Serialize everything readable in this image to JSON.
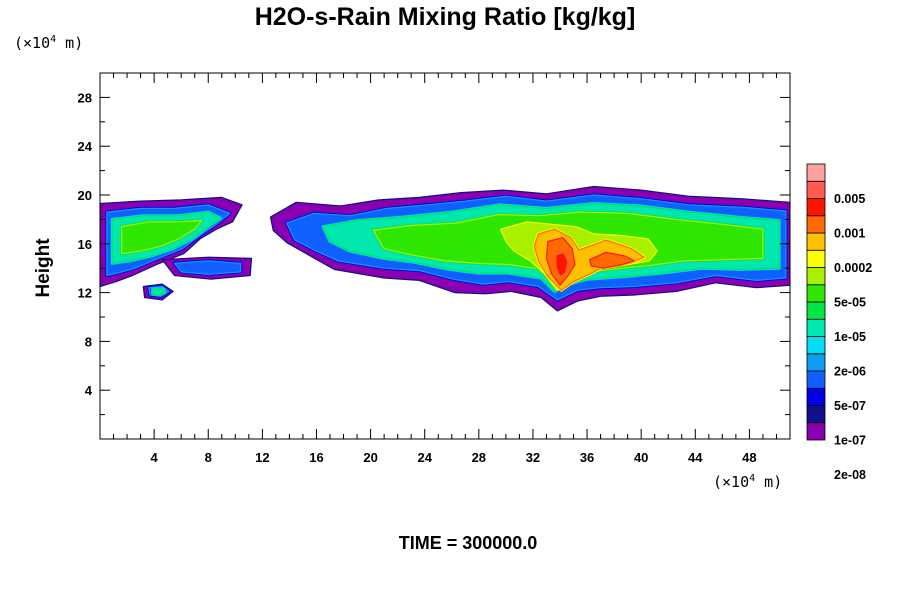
{
  "chart_data": {
    "type": "heatmap",
    "title": "H2O-s-Rain Mixing Ratio [kg/kg]",
    "xlabel": "",
    "ylabel": "Height",
    "x_unit": {
      "prefix": "(×10",
      "exp": "4",
      "suffix": " m)"
    },
    "y_unit": {
      "prefix": "(×10",
      "exp": "4",
      "suffix": " m)"
    },
    "xlim": [
      0,
      51
    ],
    "ylim": [
      0,
      30
    ],
    "x_ticks": [
      4,
      8,
      12,
      16,
      20,
      24,
      28,
      32,
      36,
      40,
      44,
      48
    ],
    "y_ticks": [
      4,
      8,
      12,
      16,
      20,
      24,
      28
    ],
    "colorbar": {
      "labels": [
        "0.005",
        "0.001",
        "0.0002",
        "5e-05",
        "1e-05",
        "2e-06",
        "5e-07",
        "1e-07",
        "2e-08"
      ],
      "colors": [
        "#8a00b0",
        "#10108a",
        "#0000e6",
        "#1060ff",
        "#0c9cf2",
        "#00dcf0",
        "#00e8b0",
        "#00e64a",
        "#2ee600",
        "#a8f000",
        "#ffff00",
        "#ffc000",
        "#ff6a00",
        "#ff1400",
        "#ff5a50",
        "#ffa0a0"
      ]
    },
    "regions": [
      {
        "level": 0,
        "pts": [
          [
            0,
            19.3
          ],
          [
            3,
            19.5
          ],
          [
            6,
            19.6
          ],
          [
            9,
            19.8
          ],
          [
            10.5,
            19.2
          ],
          [
            9.8,
            17.8
          ],
          [
            8.6,
            17.2
          ],
          [
            7.4,
            16.4
          ],
          [
            6.2,
            15.2
          ],
          [
            4.2,
            14.3
          ],
          [
            2.4,
            13.4
          ],
          [
            1.2,
            12.9
          ],
          [
            0,
            12.5
          ]
        ]
      },
      {
        "level": 0,
        "pts": [
          [
            12.6,
            18.2
          ],
          [
            14.5,
            19.4
          ],
          [
            17.8,
            19.1
          ],
          [
            20.6,
            19.6
          ],
          [
            23.6,
            19.8
          ],
          [
            26.7,
            20.2
          ],
          [
            29.8,
            20.4
          ],
          [
            33,
            20.1
          ],
          [
            36.5,
            20.7
          ],
          [
            40,
            20.4
          ],
          [
            43.5,
            19.9
          ],
          [
            47.4,
            19.7
          ],
          [
            51,
            19.4
          ],
          [
            51,
            12.6
          ],
          [
            48.5,
            12.4
          ],
          [
            45.5,
            12.8
          ],
          [
            42.6,
            12.1
          ],
          [
            39.5,
            11.8
          ],
          [
            37,
            11.7
          ],
          [
            35.3,
            11.3
          ],
          [
            33.8,
            10.5
          ],
          [
            32.6,
            11.6
          ],
          [
            30.4,
            12.1
          ],
          [
            28.5,
            11.9
          ],
          [
            26.2,
            12
          ],
          [
            23.6,
            13
          ],
          [
            21,
            13.2
          ],
          [
            17.3,
            13.9
          ],
          [
            15.4,
            15.1
          ],
          [
            13.8,
            16.1
          ],
          [
            12.8,
            17.1
          ]
        ]
      },
      {
        "level": 0,
        "pts": [
          [
            3.2,
            12.5
          ],
          [
            4.6,
            12.7
          ],
          [
            5.4,
            12.1
          ],
          [
            4.6,
            11.4
          ],
          [
            3.3,
            11.6
          ]
        ]
      },
      {
        "level": 0,
        "pts": [
          [
            4.6,
            14.7
          ],
          [
            8,
            14.9
          ],
          [
            11.2,
            14.8
          ],
          [
            11.1,
            13.4
          ],
          [
            8.2,
            13.1
          ],
          [
            5.5,
            13.4
          ]
        ]
      },
      {
        "level": 3,
        "pts": [
          [
            0.5,
            18.6
          ],
          [
            3,
            18.9
          ],
          [
            5.5,
            18.9
          ],
          [
            8,
            19.2
          ],
          [
            9.6,
            18.5
          ],
          [
            8.6,
            17.6
          ],
          [
            7.4,
            16.7
          ],
          [
            6.1,
            15.6
          ],
          [
            4.3,
            14.8
          ],
          [
            2.6,
            14
          ],
          [
            1.3,
            13.6
          ],
          [
            0.5,
            13.4
          ]
        ]
      },
      {
        "level": 3,
        "pts": [
          [
            13.8,
            17.7
          ],
          [
            15.8,
            18.5
          ],
          [
            18.5,
            18.3
          ],
          [
            21.2,
            18.9
          ],
          [
            24.2,
            19.2
          ],
          [
            27,
            19.5
          ],
          [
            30,
            19.9
          ],
          [
            33,
            19.5
          ],
          [
            36.5,
            20
          ],
          [
            40,
            19.7
          ],
          [
            43.5,
            19.2
          ],
          [
            47.4,
            19
          ],
          [
            50.7,
            18.7
          ],
          [
            50.7,
            13.2
          ],
          [
            48.5,
            13
          ],
          [
            45.5,
            13.4
          ],
          [
            42.6,
            12.8
          ],
          [
            39.5,
            12.5
          ],
          [
            37,
            12.4
          ],
          [
            35.3,
            12.2
          ],
          [
            33.8,
            11.4
          ],
          [
            32.4,
            12.5
          ],
          [
            30.2,
            12.9
          ],
          [
            28.3,
            12.7
          ],
          [
            26.1,
            13.1
          ],
          [
            23.6,
            13.8
          ],
          [
            21,
            14
          ],
          [
            17.6,
            14.6
          ],
          [
            15.8,
            15.5
          ],
          [
            14.4,
            16.3
          ]
        ]
      },
      {
        "level": 3,
        "pts": [
          [
            3.6,
            12.4
          ],
          [
            4.6,
            12.5
          ],
          [
            5.1,
            12.1
          ],
          [
            4.5,
            11.7
          ],
          [
            3.7,
            11.8
          ]
        ]
      },
      {
        "level": 3,
        "pts": [
          [
            5.5,
            14.4
          ],
          [
            8,
            14.6
          ],
          [
            10.4,
            14.4
          ],
          [
            10.4,
            13.7
          ],
          [
            8,
            13.5
          ],
          [
            6,
            13.7
          ]
        ]
      },
      {
        "level": 6,
        "pts": [
          [
            0.9,
            18
          ],
          [
            3.2,
            18.3
          ],
          [
            5.8,
            18.3
          ],
          [
            8,
            18.6
          ],
          [
            8.9,
            18.1
          ],
          [
            8,
            17.4
          ],
          [
            6.8,
            16.4
          ],
          [
            5.4,
            15.6
          ],
          [
            3.8,
            15
          ],
          [
            2.2,
            14.6
          ],
          [
            0.9,
            14.4
          ]
        ]
      },
      {
        "level": 6,
        "pts": [
          [
            16.5,
            17.4
          ],
          [
            19,
            17.9
          ],
          [
            22.5,
            18.2
          ],
          [
            26,
            18.6
          ],
          [
            29.5,
            19.2
          ],
          [
            33,
            18.9
          ],
          [
            36.5,
            19.3
          ],
          [
            40,
            19.1
          ],
          [
            43.5,
            18.6
          ],
          [
            47,
            18.2
          ],
          [
            50.2,
            17.9
          ],
          [
            50.2,
            14
          ],
          [
            47.5,
            13.9
          ],
          [
            44.5,
            14
          ],
          [
            41.5,
            13.6
          ],
          [
            38.6,
            13.3
          ],
          [
            36,
            13.1
          ],
          [
            34.4,
            12.6
          ],
          [
            33.6,
            12.1
          ],
          [
            32.6,
            13.2
          ],
          [
            30.2,
            13.6
          ],
          [
            28,
            13.6
          ],
          [
            25.8,
            13.9
          ],
          [
            23.2,
            14.5
          ],
          [
            21,
            14.8
          ],
          [
            18.5,
            15.4
          ],
          [
            17,
            16.2
          ]
        ]
      },
      {
        "level": 6,
        "pts": [
          [
            3.9,
            12.3
          ],
          [
            4.7,
            12.3
          ],
          [
            4.8,
            12
          ],
          [
            4.3,
            11.8
          ],
          [
            3.9,
            11.9
          ]
        ]
      },
      {
        "level": 8,
        "pts": [
          [
            1.6,
            17.4
          ],
          [
            3.6,
            17.8
          ],
          [
            5.8,
            17.8
          ],
          [
            7.5,
            17.9
          ],
          [
            7,
            17.2
          ],
          [
            5.8,
            16.4
          ],
          [
            4.5,
            15.8
          ],
          [
            3,
            15.4
          ],
          [
            1.6,
            15.2
          ]
        ]
      },
      {
        "level": 8,
        "pts": [
          [
            20.2,
            17.1
          ],
          [
            23,
            17.5
          ],
          [
            26.3,
            17.7
          ],
          [
            29.5,
            18.4
          ],
          [
            32.5,
            18.3
          ],
          [
            35.5,
            18.6
          ],
          [
            39,
            18.5
          ],
          [
            42.5,
            18
          ],
          [
            46,
            17.6
          ],
          [
            49,
            17.2
          ],
          [
            49,
            14.8
          ],
          [
            46.2,
            14.7
          ],
          [
            43.2,
            14.6
          ],
          [
            40.4,
            14.2
          ],
          [
            37.8,
            13.9
          ],
          [
            35.5,
            13.6
          ],
          [
            34,
            12.8
          ],
          [
            32.7,
            13.9
          ],
          [
            30.2,
            14.3
          ],
          [
            27.8,
            14.4
          ],
          [
            25.5,
            14.6
          ],
          [
            23,
            15.1
          ],
          [
            21,
            15.6
          ]
        ]
      },
      {
        "level": 9,
        "pts": [
          [
            29.6,
            17.2
          ],
          [
            31.6,
            17.8
          ],
          [
            33.4,
            17.6
          ],
          [
            35.2,
            17.4
          ],
          [
            36.5,
            16.8
          ],
          [
            38.4,
            16.7
          ],
          [
            40.5,
            16.4
          ],
          [
            41.2,
            15.4
          ],
          [
            40.6,
            14.6
          ],
          [
            38.5,
            14.2
          ],
          [
            36.2,
            13.8
          ],
          [
            34.6,
            13.2
          ],
          [
            33.8,
            12.2
          ],
          [
            32.8,
            13.6
          ],
          [
            31.8,
            14.6
          ],
          [
            30.6,
            15.4
          ],
          [
            30,
            16.2
          ]
        ]
      },
      {
        "level": 11,
        "pts": [
          [
            32.4,
            16.8
          ],
          [
            33.6,
            17.2
          ],
          [
            34.8,
            16.5
          ],
          [
            35.4,
            15.5
          ],
          [
            36.2,
            15.8
          ],
          [
            37.4,
            16.3
          ],
          [
            39.3,
            15.6
          ],
          [
            40.2,
            14.9
          ],
          [
            39.2,
            14.4
          ],
          [
            37.2,
            14.1
          ],
          [
            36,
            13.4
          ],
          [
            35,
            12.9
          ],
          [
            34.1,
            12.2
          ],
          [
            33.1,
            13.3
          ],
          [
            32.4,
            14.6
          ],
          [
            32.1,
            15.8
          ]
        ]
      },
      {
        "level": 12,
        "pts": [
          [
            33.1,
            16.2
          ],
          [
            34.2,
            16.5
          ],
          [
            34.9,
            15.6
          ],
          [
            35.1,
            14.3
          ],
          [
            34.6,
            13.4
          ],
          [
            34,
            12.6
          ],
          [
            33.4,
            13.5
          ],
          [
            33,
            14.8
          ]
        ]
      },
      {
        "level": 12,
        "pts": [
          [
            36.2,
            14.7
          ],
          [
            37.4,
            15.3
          ],
          [
            38.8,
            15
          ],
          [
            39.5,
            14.6
          ],
          [
            38.6,
            14.3
          ],
          [
            37.2,
            14
          ],
          [
            36.3,
            14.2
          ]
        ]
      },
      {
        "level": 13,
        "pts": [
          [
            33.7,
            15.1
          ],
          [
            34.3,
            15.3
          ],
          [
            34.6,
            14.5
          ],
          [
            34.4,
            13.6
          ],
          [
            34,
            13.3
          ],
          [
            33.7,
            14.1
          ]
        ]
      }
    ]
  },
  "footer": {
    "time_text": "TIME = 300000.0"
  }
}
